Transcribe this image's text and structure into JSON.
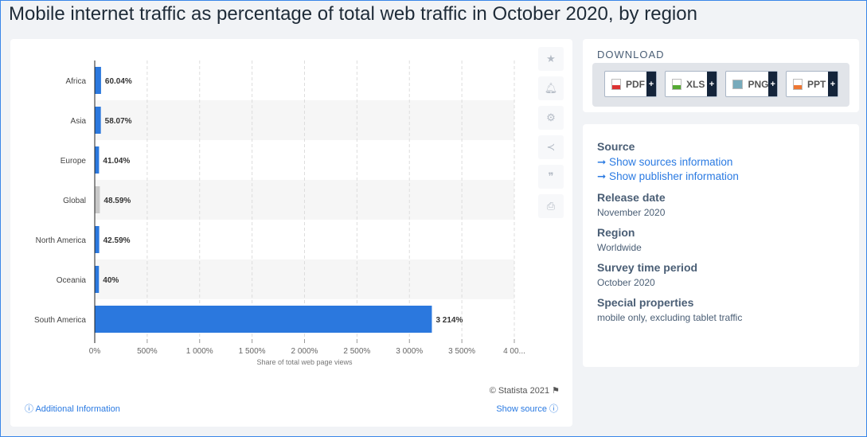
{
  "title": "Mobile internet traffic as percentage of total web traffic in October 2020, by region",
  "chart_data": {
    "type": "bar",
    "orientation": "horizontal",
    "categories": [
      "Africa",
      "Asia",
      "Europe",
      "Global",
      "North America",
      "Oceania",
      "South America"
    ],
    "values": [
      60.04,
      58.07,
      41.04,
      48.59,
      42.59,
      40,
      3214
    ],
    "data_labels": [
      "60.04%",
      "58.07%",
      "41.04%",
      "48.59%",
      "42.59%",
      "40%",
      "3 214%"
    ],
    "highlight": "Global",
    "colors": {
      "bar": "#2b78de",
      "highlight": "#c9c9c9"
    },
    "xlabel": "Share of total web page views",
    "xlim": [
      0,
      4000
    ],
    "xticks": [
      0,
      500,
      1000,
      1500,
      2000,
      2500,
      3000,
      3500,
      4000
    ],
    "xtick_labels": [
      "0%",
      "500%",
      "1 000%",
      "1 500%",
      "2 000%",
      "2 500%",
      "3 000%",
      "3 500%",
      "4 00..."
    ],
    "grid": true
  },
  "credit": "© Statista 2021",
  "additional_info": "Additional Information",
  "show_source": "Show source",
  "download": {
    "title": "DOWNLOAD",
    "buttons": [
      "PDF",
      "XLS",
      "PNG",
      "PPT"
    ],
    "plus": "+"
  },
  "info": {
    "source_h": "Source",
    "source_link1": "➞ Show sources information",
    "source_link2": "➞ Show publisher information",
    "release_h": "Release date",
    "release": "November 2020",
    "region_h": "Region",
    "region": "Worldwide",
    "survey_h": "Survey time period",
    "survey": "October 2020",
    "special_h": "Special properties",
    "special": "mobile only, excluding tablet traffic"
  }
}
